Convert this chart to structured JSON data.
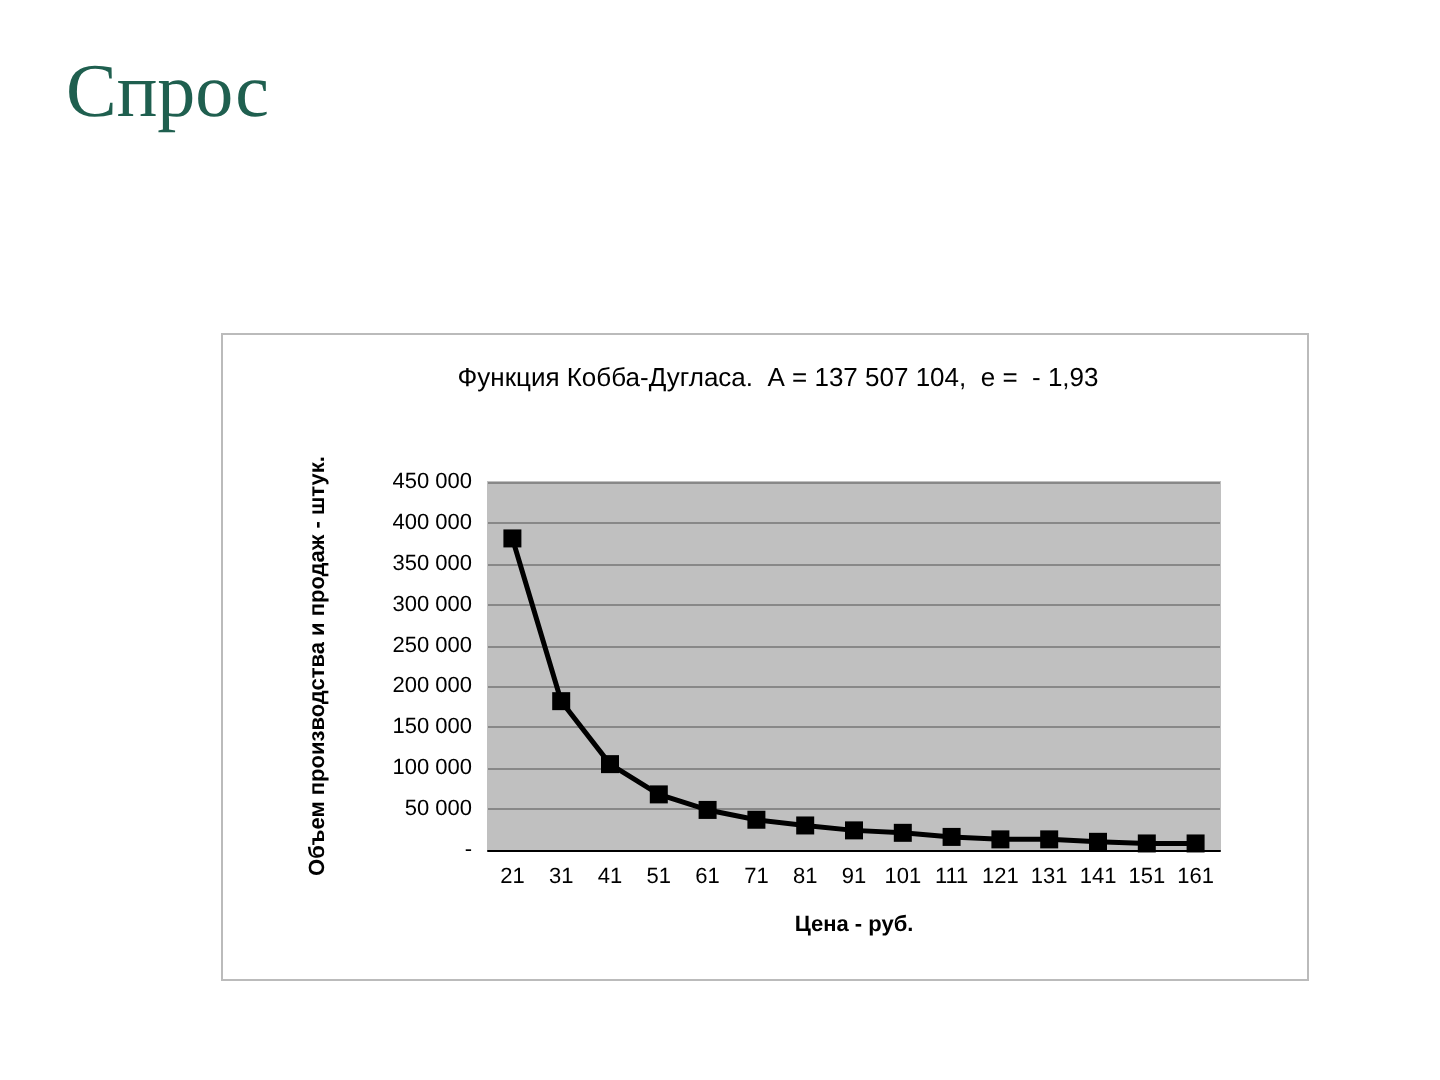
{
  "chart_data": {
    "type": "line",
    "title": "Спрос",
    "subtitle": "Функция Кобба-Дугласа.  А = 137 507 104,  е =  - 1,93",
    "xlabel": "Цена - руб.",
    "ylabel": "Объем производства и продаж - штук.",
    "categories": [
      "21",
      "31",
      "41",
      "51",
      "61",
      "71",
      "81",
      "91",
      "101",
      "111",
      "121",
      "131",
      "141",
      "151",
      "161"
    ],
    "series": [
      {
        "color": "#000000",
        "values": [
          381000,
          182000,
          105000,
          68000,
          49000,
          37000,
          30000,
          24000,
          21000,
          16000,
          13000,
          13000,
          10000,
          8000,
          8000
        ]
      }
    ],
    "ylim": [
      0,
      450000
    ],
    "yticks": [
      {
        "value": 0,
        "label": "-"
      },
      {
        "value": 50000,
        "label": "50 000"
      },
      {
        "value": 100000,
        "label": "100 000"
      },
      {
        "value": 150000,
        "label": "150 000"
      },
      {
        "value": 200000,
        "label": "200 000"
      },
      {
        "value": 250000,
        "label": "250 000"
      },
      {
        "value": 300000,
        "label": "300 000"
      },
      {
        "value": 350000,
        "label": "350 000"
      },
      {
        "value": 400000,
        "label": "400 000"
      },
      {
        "value": 450000,
        "label": "450 000"
      }
    ],
    "grid": "y",
    "marker": "square",
    "line_style": "solid"
  }
}
